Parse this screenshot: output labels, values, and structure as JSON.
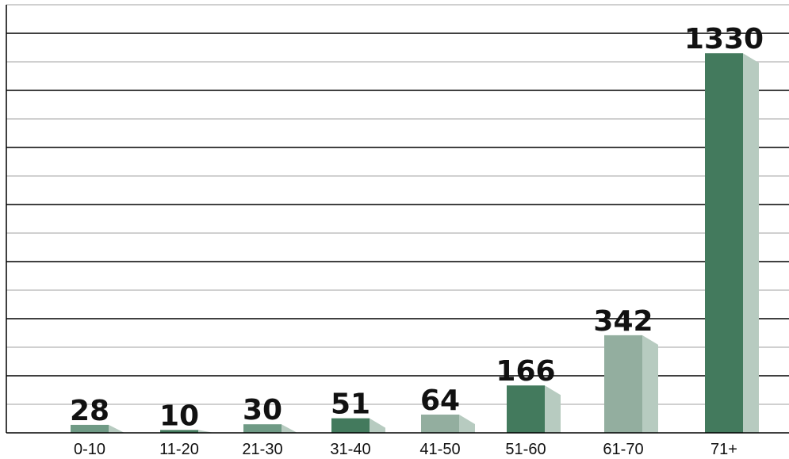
{
  "chart_data": {
    "type": "bar",
    "categories": [
      "0-10",
      "11-20",
      "21-30",
      "31-40",
      "41-50",
      "51-60",
      "61-70",
      "71+"
    ],
    "values": [
      28,
      10,
      30,
      51,
      64,
      166,
      342,
      1330
    ],
    "title": "",
    "xlabel": "",
    "ylabel": "",
    "ylim": [
      0,
      1500
    ],
    "grid": true,
    "legend": "none",
    "colors": {
      "dark_green": "#437a5d",
      "mid_green": "#6f9a85",
      "light_green": "#93ae9f",
      "side_light": "#b7cbc0",
      "grid_major": "#000000",
      "grid_minor": "#c0c0c0"
    },
    "bar_colors": [
      "#6f9a85",
      "#437a5d",
      "#6f9a85",
      "#437a5d",
      "#93ae9f",
      "#437a5d",
      "#93ae9f",
      "#437a5d"
    ]
  }
}
